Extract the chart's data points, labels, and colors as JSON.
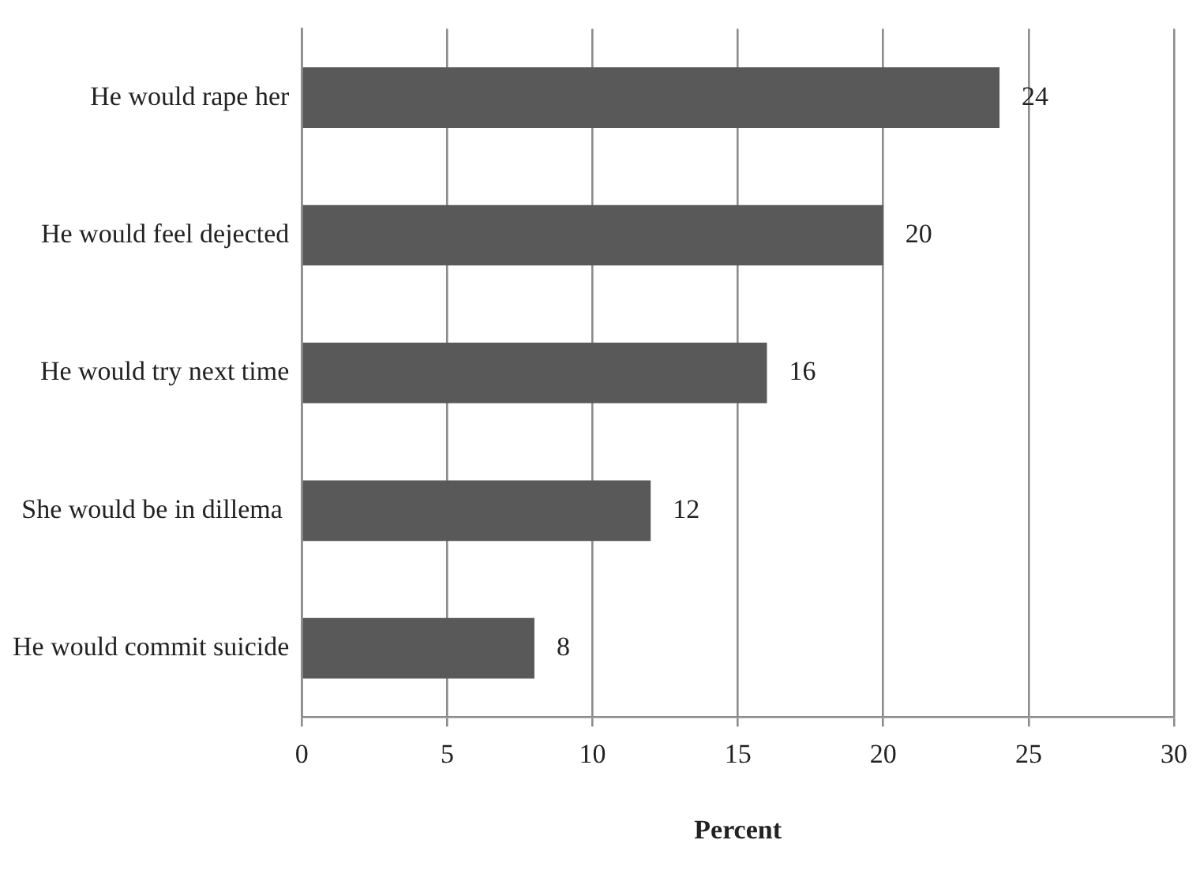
{
  "chart_data": {
    "type": "bar",
    "orientation": "horizontal",
    "xlabel": "Percent",
    "categories": [
      "He would rape her",
      "He would feel dejected",
      "He would try next time",
      "She would be in dillema ",
      "He would commit suicide"
    ],
    "values": [
      24,
      20,
      16,
      12,
      8
    ],
    "color": "#595959",
    "xlim": [
      0,
      30
    ],
    "xticks": [
      0,
      5,
      10,
      15,
      20,
      25,
      30
    ],
    "grid": "x",
    "data_labels": true,
    "legend": false
  }
}
